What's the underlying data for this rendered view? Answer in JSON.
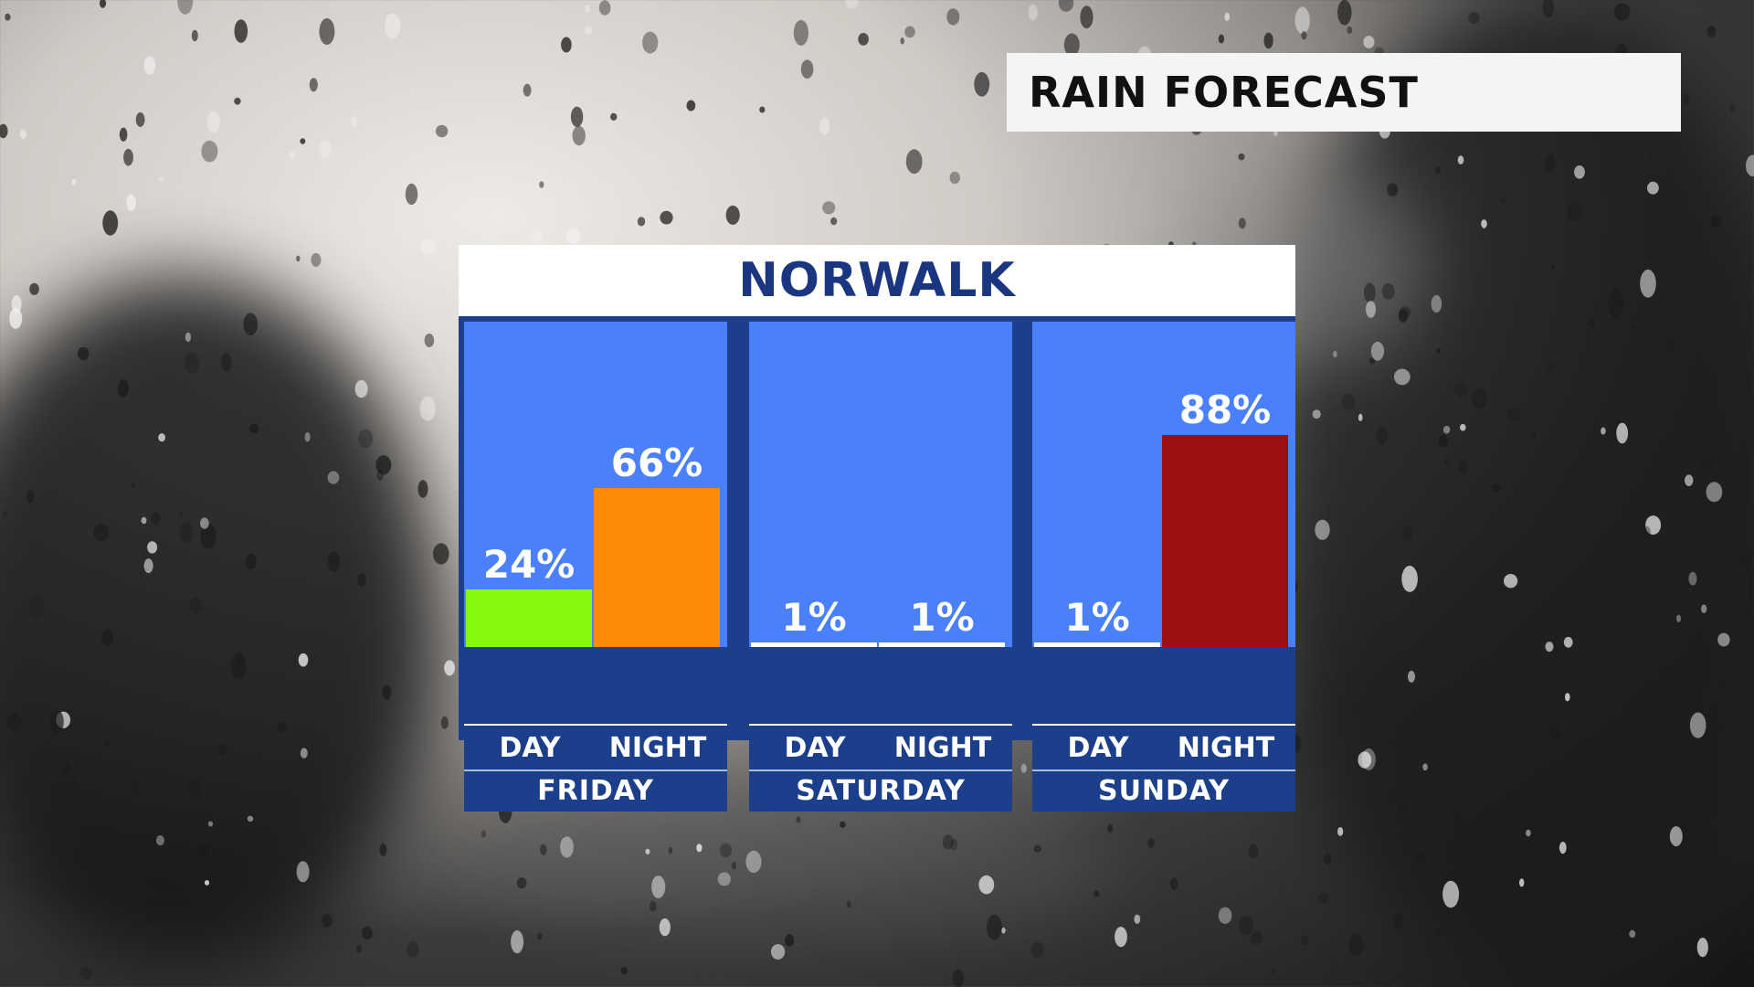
{
  "header": {
    "title": "RAIN FORECAST"
  },
  "location": "NORWALK",
  "colors": {
    "plot_bg": "#4a80fb",
    "frame": "#1c3f8c",
    "low": "#86f90f",
    "medium": "#ff8a0a",
    "high": "#9e0f10",
    "minimal": "#ffffff"
  },
  "chart_data": {
    "type": "bar",
    "title": "NORWALK",
    "ylim": [
      0,
      100
    ],
    "unit": "%",
    "grid": false,
    "groups": [
      {
        "day": "FRIDAY",
        "periods": [
          {
            "label": "DAY",
            "value": 24,
            "text": "24%",
            "color": "#86f90f"
          },
          {
            "label": "NIGHT",
            "value": 66,
            "text": "66%",
            "color": "#ff8a0a"
          }
        ]
      },
      {
        "day": "SATURDAY",
        "periods": [
          {
            "label": "DAY",
            "value": 1,
            "text": "1%",
            "color": "#ffffff"
          },
          {
            "label": "NIGHT",
            "value": 1,
            "text": "1%",
            "color": "#ffffff"
          }
        ]
      },
      {
        "day": "SUNDAY",
        "periods": [
          {
            "label": "DAY",
            "value": 1,
            "text": "1%",
            "color": "#ffffff"
          },
          {
            "label": "NIGHT",
            "value": 88,
            "text": "88%",
            "color": "#9e0f10"
          }
        ]
      }
    ]
  }
}
